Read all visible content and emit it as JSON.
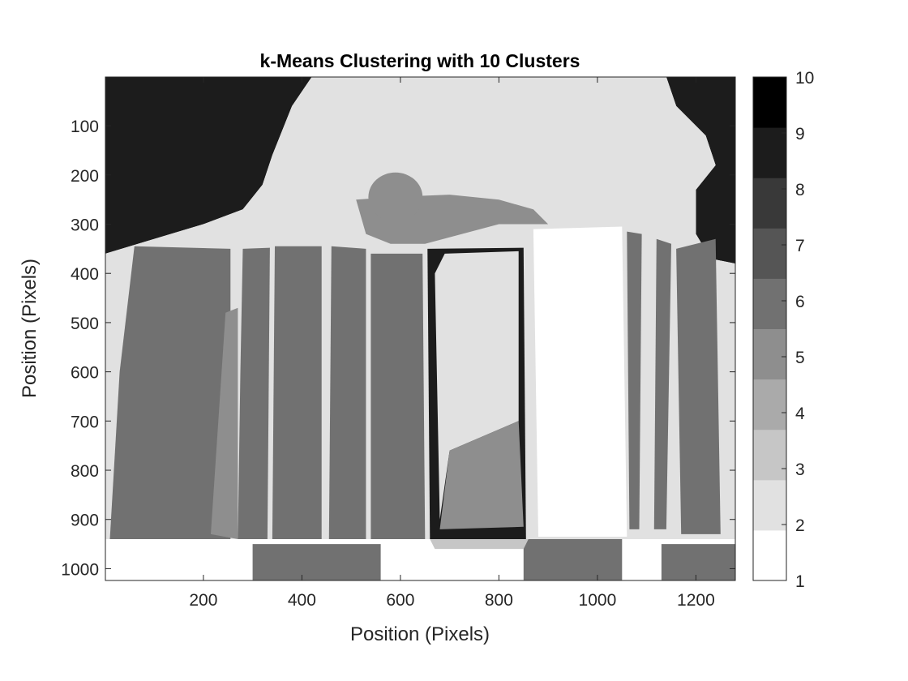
{
  "chart_data": {
    "type": "heatmap",
    "title": "k-Means Clustering with 10 Clusters",
    "xlabel": "Position (Pixels)",
    "ylabel": "Position (Pixels)",
    "xlim": [
      1,
      1280
    ],
    "ylim": [
      1,
      1024
    ],
    "y_reversed": true,
    "xticks": [
      200,
      400,
      600,
      800,
      1000,
      1200
    ],
    "yticks": [
      100,
      200,
      300,
      400,
      500,
      600,
      700,
      800,
      900,
      1000
    ],
    "colorbar": {
      "min": 1,
      "max": 10,
      "ticks": [
        1,
        2,
        3,
        4,
        5,
        6,
        7,
        8,
        9,
        10
      ],
      "colors": [
        "#ffffff",
        "#e1e1e1",
        "#c6c6c6",
        "#aaaaaa",
        "#8e8e8e",
        "#717171",
        "#555555",
        "#393939",
        "#1c1c1c",
        "#000000"
      ]
    },
    "regions": [
      {
        "cluster": 9,
        "polygon": [
          [
            1,
            1
          ],
          [
            420,
            1
          ],
          [
            380,
            60
          ],
          [
            340,
            160
          ],
          [
            320,
            220
          ],
          [
            280,
            270
          ],
          [
            200,
            300
          ],
          [
            100,
            330
          ],
          [
            1,
            360
          ]
        ]
      },
      {
        "cluster": 9,
        "polygon": [
          [
            1140,
            1
          ],
          [
            1280,
            1
          ],
          [
            1280,
            380
          ],
          [
            1230,
            370
          ],
          [
            1200,
            320
          ],
          [
            1200,
            230
          ],
          [
            1240,
            180
          ],
          [
            1220,
            120
          ],
          [
            1160,
            60
          ]
        ]
      },
      {
        "cluster": 2,
        "polygon": [
          [
            420,
            1
          ],
          [
            1140,
            1
          ],
          [
            1160,
            60
          ],
          [
            1220,
            120
          ],
          [
            1240,
            180
          ],
          [
            1200,
            230
          ],
          [
            1200,
            320
          ],
          [
            1230,
            370
          ],
          [
            1280,
            380
          ],
          [
            1280,
            1024
          ],
          [
            1,
            1024
          ],
          [
            1,
            360
          ],
          [
            100,
            330
          ],
          [
            200,
            300
          ],
          [
            280,
            270
          ],
          [
            320,
            220
          ],
          [
            340,
            160
          ],
          [
            380,
            60
          ]
        ]
      },
      {
        "cluster": 5,
        "polygon": [
          [
            510,
            250
          ],
          [
            580,
            245
          ],
          [
            700,
            240
          ],
          [
            800,
            250
          ],
          [
            870,
            270
          ],
          [
            900,
            300
          ],
          [
            800,
            300
          ],
          [
            650,
            340
          ],
          [
            580,
            340
          ],
          [
            530,
            320
          ]
        ]
      },
      {
        "cluster": 5,
        "ellipse": [
          [
            590,
            245
          ],
          [
            55,
            50
          ]
        ]
      },
      {
        "cluster": 1,
        "polygon": [
          [
            1,
            940
          ],
          [
            1280,
            940
          ],
          [
            1280,
            1024
          ],
          [
            1,
            1024
          ]
        ]
      },
      {
        "cluster": 6,
        "polygon": [
          [
            60,
            345
          ],
          [
            255,
            350
          ],
          [
            255,
            940
          ],
          [
            10,
            940
          ],
          [
            30,
            600
          ]
        ]
      },
      {
        "cluster": 5,
        "polygon": [
          [
            215,
            930
          ],
          [
            245,
            480
          ],
          [
            270,
            470
          ],
          [
            270,
            940
          ]
        ]
      },
      {
        "cluster": 6,
        "polygon": [
          [
            280,
            350
          ],
          [
            335,
            348
          ],
          [
            330,
            940
          ],
          [
            270,
            940
          ],
          [
            275,
            600
          ]
        ]
      },
      {
        "cluster": 6,
        "polygon": [
          [
            345,
            345
          ],
          [
            440,
            345
          ],
          [
            440,
            940
          ],
          [
            340,
            940
          ]
        ]
      },
      {
        "cluster": 6,
        "polygon": [
          [
            460,
            345
          ],
          [
            530,
            350
          ],
          [
            530,
            940
          ],
          [
            455,
            940
          ]
        ]
      },
      {
        "cluster": 6,
        "polygon": [
          [
            540,
            360
          ],
          [
            645,
            360
          ],
          [
            650,
            940
          ],
          [
            540,
            940
          ]
        ]
      },
      {
        "cluster": 9,
        "polygon": [
          [
            655,
            350
          ],
          [
            850,
            348
          ],
          [
            855,
            940
          ],
          [
            660,
            940
          ]
        ]
      },
      {
        "cluster": 2,
        "polygon": [
          [
            690,
            360
          ],
          [
            840,
            355
          ],
          [
            840,
            700
          ],
          [
            700,
            760
          ],
          [
            680,
            900
          ],
          [
            670,
            400
          ]
        ]
      },
      {
        "cluster": 5,
        "polygon": [
          [
            700,
            760
          ],
          [
            840,
            700
          ],
          [
            850,
            915
          ],
          [
            680,
            920
          ]
        ]
      },
      {
        "cluster": 1,
        "polygon": [
          [
            870,
            310
          ],
          [
            1050,
            305
          ],
          [
            1060,
            935
          ],
          [
            880,
            935
          ]
        ]
      },
      {
        "cluster": 6,
        "polygon": [
          [
            1060,
            315
          ],
          [
            1090,
            320
          ],
          [
            1085,
            920
          ],
          [
            1065,
            920
          ]
        ]
      },
      {
        "cluster": 6,
        "polygon": [
          [
            1120,
            330
          ],
          [
            1150,
            340
          ],
          [
            1140,
            920
          ],
          [
            1115,
            920
          ]
        ]
      },
      {
        "cluster": 6,
        "polygon": [
          [
            1160,
            350
          ],
          [
            1240,
            330
          ],
          [
            1250,
            930
          ],
          [
            1170,
            930
          ]
        ]
      },
      {
        "cluster": 6,
        "polygon": [
          [
            850,
            940
          ],
          [
            1050,
            940
          ],
          [
            1050,
            1024
          ],
          [
            850,
            1024
          ]
        ]
      },
      {
        "cluster": 6,
        "polygon": [
          [
            300,
            950
          ],
          [
            560,
            950
          ],
          [
            560,
            1024
          ],
          [
            300,
            1024
          ]
        ]
      },
      {
        "cluster": 6,
        "polygon": [
          [
            1130,
            950
          ],
          [
            1280,
            950
          ],
          [
            1280,
            1024
          ],
          [
            1130,
            1024
          ]
        ]
      },
      {
        "cluster": 3,
        "polygon": [
          [
            660,
            940
          ],
          [
            860,
            940
          ],
          [
            850,
            960
          ],
          [
            670,
            960
          ]
        ]
      }
    ]
  }
}
